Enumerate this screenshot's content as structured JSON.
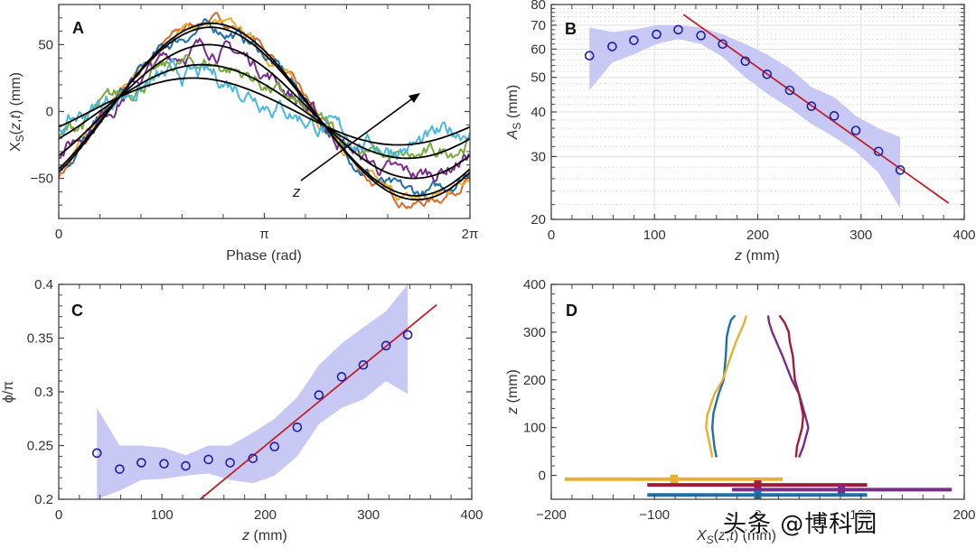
{
  "watermark": "头条 @博科园",
  "colors": {
    "envelope": "#c8c8f5",
    "marker": "#1f1fa0",
    "fit_line": "#c0202a",
    "fit_black": "#000000",
    "blue": "#1f6fa8",
    "yellow": "#e8b030",
    "red": "#a01c3c",
    "purple": "#7a2c8c",
    "orange": "#d86a2a",
    "green": "#78aa3a",
    "cyan": "#4ab8dc"
  },
  "chart_data": [
    {
      "panel": "A",
      "type": "line",
      "title": "",
      "xlabel": "Phase (rad)",
      "ylabel": "X_S(z,t) (mm)",
      "xlim": [
        0,
        6.2832
      ],
      "ylim": [
        -80,
        80
      ],
      "xticks": [
        {
          "v": 0,
          "label": "0"
        },
        {
          "v": 3.1416,
          "label": "π"
        },
        {
          "v": 6.2832,
          "label": "2π"
        }
      ],
      "yticks": [
        {
          "v": -50,
          "label": "−50"
        },
        {
          "v": 0,
          "label": "0"
        },
        {
          "v": 50,
          "label": "50"
        }
      ],
      "annotation": {
        "text": "z",
        "arrow": "pointing toward increasing z (smaller amplitude, larger phase lag)"
      },
      "fit_curves": [
        {
          "amplitude": 66,
          "phase_shift": 0.76
        },
        {
          "amplitude": 63,
          "phase_shift": 0.75
        },
        {
          "amplitude": 50,
          "phase_shift": 0.72
        },
        {
          "amplitude": 35,
          "phase_shift": 0.62
        },
        {
          "amplitude": 25,
          "phase_shift": 0.48
        }
      ],
      "series": [
        {
          "name": "orange",
          "amplitude": 68,
          "phase_shift": 0.77,
          "noise": 3
        },
        {
          "name": "yellow",
          "amplitude": 66,
          "phase_shift": 0.75,
          "noise": 3
        },
        {
          "name": "blue",
          "amplitude": 62,
          "phase_shift": 0.76,
          "noise": 4
        },
        {
          "name": "purple",
          "amplitude": 48,
          "phase_shift": 0.7,
          "noise": 5
        },
        {
          "name": "green",
          "amplitude": 36,
          "phase_shift": 0.6,
          "noise": 5
        },
        {
          "name": "cyan",
          "amplitude": 26,
          "phase_shift": 0.45,
          "noise": 6
        }
      ]
    },
    {
      "panel": "B",
      "type": "scatter",
      "xlabel": "z (mm)",
      "ylabel": "A_S (mm)",
      "xlim": [
        0,
        400
      ],
      "ylim": [
        20,
        80
      ],
      "yscale": "log",
      "grid": true,
      "xticks": [
        0,
        100,
        200,
        300,
        400
      ],
      "yticks": [
        20,
        30,
        40,
        50,
        60,
        70,
        80
      ],
      "x": [
        37,
        59,
        80,
        102,
        123,
        145,
        166,
        188,
        209,
        231,
        252,
        274,
        295,
        317,
        338
      ],
      "y": [
        57.5,
        61,
        63.5,
        66,
        68,
        65.5,
        62,
        55.5,
        51,
        46,
        41.5,
        39,
        35.5,
        31,
        27.5
      ],
      "envelope_upper": [
        69,
        67,
        68,
        70,
        70,
        69,
        66,
        62,
        58,
        53,
        47,
        44,
        39,
        36,
        34
      ],
      "envelope_lower": [
        46,
        55,
        58,
        62,
        64,
        62,
        57,
        50,
        45,
        41,
        37,
        34,
        31,
        27,
        21.5
      ],
      "fit": {
        "x": [
          128,
          385
        ],
        "y": [
          75,
          22.2
        ]
      }
    },
    {
      "panel": "C",
      "type": "scatter",
      "xlabel": "z (mm)",
      "ylabel": "ϕ/π",
      "xlim": [
        0,
        400
      ],
      "ylim": [
        0.2,
        0.4
      ],
      "xticks": [
        0,
        100,
        200,
        300,
        400
      ],
      "yticks": [
        0.2,
        0.25,
        0.3,
        0.35,
        0.4
      ],
      "x": [
        37,
        59,
        80,
        102,
        123,
        145,
        166,
        188,
        209,
        231,
        252,
        274,
        295,
        317,
        338
      ],
      "y": [
        0.243,
        0.228,
        0.234,
        0.233,
        0.231,
        0.237,
        0.234,
        0.238,
        0.249,
        0.267,
        0.297,
        0.314,
        0.325,
        0.343,
        0.353
      ],
      "envelope_upper": [
        0.285,
        0.25,
        0.25,
        0.248,
        0.241,
        0.25,
        0.25,
        0.262,
        0.275,
        0.295,
        0.325,
        0.345,
        0.36,
        0.375,
        0.4
      ],
      "envelope_lower": [
        0.2,
        0.208,
        0.218,
        0.219,
        0.222,
        0.224,
        0.218,
        0.215,
        0.222,
        0.24,
        0.27,
        0.285,
        0.293,
        0.31,
        0.298
      ],
      "fit": {
        "x": [
          137,
          366
        ],
        "y": [
          0.2,
          0.381
        ]
      }
    },
    {
      "panel": "D",
      "type": "line",
      "xlabel": "X_S(z,t) (mm)",
      "ylabel": "z (mm)",
      "xlim": [
        -200,
        200
      ],
      "ylim": [
        -50,
        400
      ],
      "xticks": [
        -200,
        -100,
        0,
        100,
        200
      ],
      "xtick_labels": [
        "−200",
        "−100",
        "0",
        "100",
        "200"
      ],
      "yticks": [
        0,
        100,
        200,
        300,
        400
      ],
      "series": [
        {
          "name": "blue",
          "x": [
            -40,
            -42,
            -44,
            -43,
            -38,
            -33,
            -31,
            -30,
            -28,
            -26,
            -22
          ],
          "z": [
            38,
            60,
            100,
            130,
            170,
            200,
            250,
            290,
            310,
            325,
            335
          ]
        },
        {
          "name": "yellow",
          "x": [
            -44,
            -46,
            -50,
            -49,
            -42,
            -34,
            -26,
            -21,
            -17,
            -13,
            -11
          ],
          "z": [
            38,
            60,
            100,
            125,
            170,
            200,
            250,
            280,
            300,
            320,
            335
          ]
        },
        {
          "name": "purple",
          "x": [
            40,
            44,
            49,
            46,
            40,
            33,
            24,
            18,
            14,
            11,
            10
          ],
          "z": [
            38,
            60,
            100,
            125,
            170,
            200,
            250,
            280,
            300,
            320,
            335
          ]
        },
        {
          "name": "red",
          "x": [
            37,
            38,
            43,
            44,
            40,
            36,
            34,
            31,
            30,
            26,
            21
          ],
          "z": [
            38,
            60,
            100,
            125,
            170,
            200,
            250,
            280,
            300,
            320,
            335
          ]
        }
      ],
      "errorbars": [
        {
          "name": "yellow",
          "center": -81,
          "low": -187,
          "high": 24,
          "z": -8
        },
        {
          "name": "red",
          "center": 0,
          "low": -107,
          "high": 106,
          "z": -20
        },
        {
          "name": "purple",
          "center": 81,
          "low": -25,
          "high": 188,
          "z": -30
        },
        {
          "name": "blue",
          "center": 0,
          "low": -107,
          "high": 106,
          "z": -41
        }
      ]
    }
  ]
}
